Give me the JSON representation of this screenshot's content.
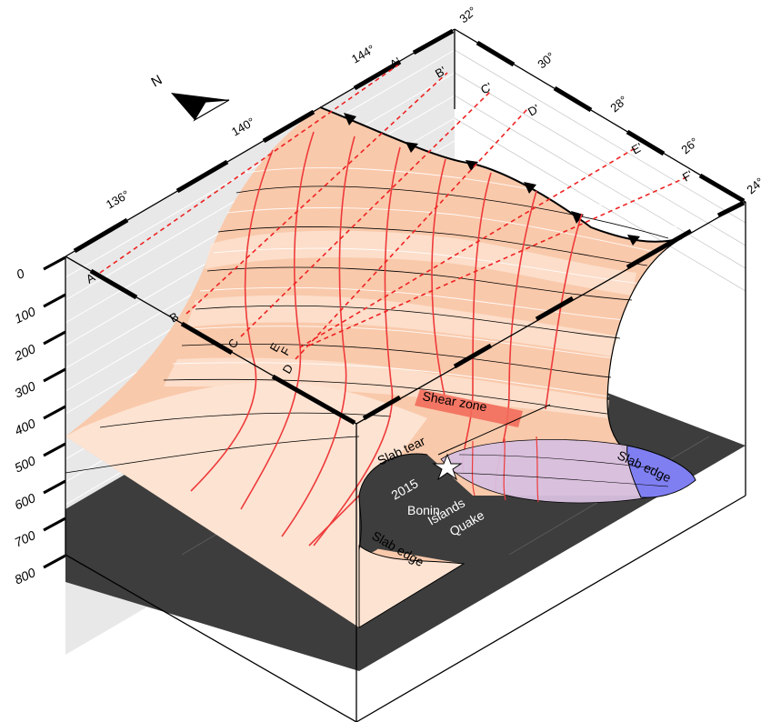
{
  "diagram": {
    "depth_axis": {
      "ticks": [
        "0",
        "100",
        "200",
        "300",
        "400",
        "500",
        "600",
        "700",
        "800"
      ]
    },
    "longitude_ticks": [
      "136°",
      "140°",
      "144°"
    ],
    "latitude_ticks": [
      "32°",
      "30°",
      "28°",
      "26°",
      "24°"
    ],
    "north_label": "N",
    "profile_start_labels": [
      "A",
      "B",
      "C",
      "D",
      "E",
      "F"
    ],
    "profile_end_labels": [
      "A'",
      "B'",
      "C'",
      "D'",
      "E'",
      "F'"
    ],
    "annotations": {
      "shear_zone": "Shear zone",
      "slab_tear": "Slab tear",
      "slab_edge_west": "Slab edge",
      "slab_edge_east": "Slab edge",
      "quake": [
        "2015",
        "Bonin",
        "Islands",
        "Quake"
      ]
    },
    "colors": {
      "slab_fill": "#f9c7a8",
      "slab_fill_light": "#fde3d3",
      "section_line": "#ee3333",
      "shear_zone": "#f26b5b",
      "slab_edge_east": "#7f7ff2",
      "base_plane": "#3f3f3f",
      "backwall": "#e6e6e6"
    }
  }
}
